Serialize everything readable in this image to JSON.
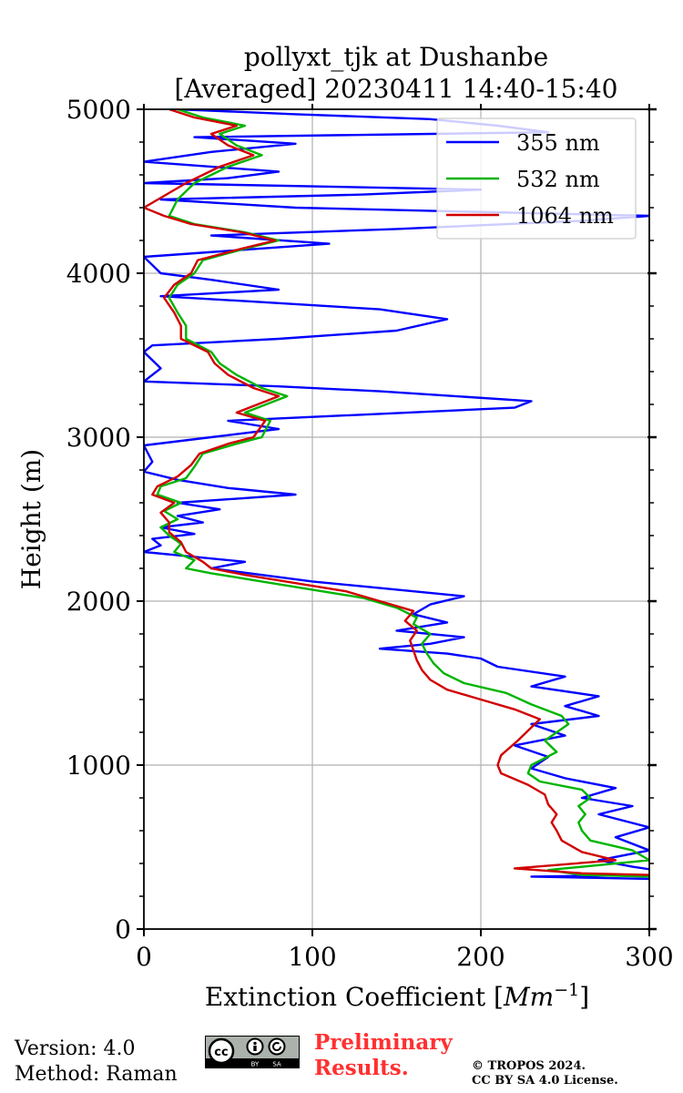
{
  "chart_data": {
    "type": "line",
    "title_line1": "pollyxt_tjk at Dushanbe",
    "title_line2": "[Averaged] 20230411 14:40-15:40",
    "xlabel_text": "Extinction Coefficient [",
    "xlabel_unit": "Mm",
    "xlabel_exp": "−1",
    "xlabel_close": "]",
    "ylabel": "Height (m)",
    "xlim": [
      0,
      300
    ],
    "ylim": [
      0,
      5000
    ],
    "xticks": [
      0,
      100,
      200,
      300
    ],
    "yticks": [
      0,
      1000,
      2000,
      3000,
      4000,
      5000
    ],
    "grid": true,
    "legend_position": "top-right",
    "series": [
      {
        "name": "355 nm",
        "color": "#0000ff",
        "points": [
          [
            330,
            300
          ],
          [
            230,
            320
          ],
          [
            300,
            330
          ],
          [
            310,
            350
          ],
          [
            290,
            380
          ],
          [
            270,
            420
          ],
          [
            300,
            480
          ],
          [
            280,
            560
          ],
          [
            300,
            620
          ],
          [
            270,
            700
          ],
          [
            290,
            750
          ],
          [
            260,
            800
          ],
          [
            280,
            860
          ],
          [
            250,
            920
          ],
          [
            230,
            980
          ],
          [
            240,
            1050
          ],
          [
            220,
            1120
          ],
          [
            250,
            1180
          ],
          [
            230,
            1250
          ],
          [
            270,
            1300
          ],
          [
            250,
            1360
          ],
          [
            270,
            1420
          ],
          [
            230,
            1480
          ],
          [
            250,
            1540
          ],
          [
            210,
            1600
          ],
          [
            200,
            1650
          ],
          [
            180,
            1680
          ],
          [
            140,
            1710
          ],
          [
            170,
            1740
          ],
          [
            190,
            1780
          ],
          [
            150,
            1820
          ],
          [
            180,
            1870
          ],
          [
            160,
            1920
          ],
          [
            170,
            1980
          ],
          [
            190,
            2030
          ],
          [
            140,
            2080
          ],
          [
            100,
            2120
          ],
          [
            70,
            2160
          ],
          [
            40,
            2200
          ],
          [
            60,
            2240
          ],
          [
            20,
            2280
          ],
          [
            0,
            2300
          ],
          [
            10,
            2340
          ],
          [
            5,
            2380
          ],
          [
            30,
            2410
          ],
          [
            10,
            2450
          ],
          [
            35,
            2480
          ],
          [
            20,
            2520
          ],
          [
            45,
            2560
          ],
          [
            20,
            2600
          ],
          [
            90,
            2650
          ],
          [
            50,
            2690
          ],
          [
            20,
            2740
          ],
          [
            0,
            2790
          ],
          [
            5,
            2850
          ],
          [
            0,
            2950
          ],
          [
            40,
            3000
          ],
          [
            80,
            3050
          ],
          [
            50,
            3100
          ],
          [
            220,
            3180
          ],
          [
            230,
            3220
          ],
          [
            140,
            3280
          ],
          [
            80,
            3310
          ],
          [
            0,
            3340
          ],
          [
            10,
            3420
          ],
          [
            0,
            3520
          ],
          [
            5,
            3560
          ],
          [
            80,
            3600
          ],
          [
            150,
            3650
          ],
          [
            180,
            3720
          ],
          [
            140,
            3780
          ],
          [
            60,
            3830
          ],
          [
            10,
            3860
          ],
          [
            80,
            3900
          ],
          [
            40,
            3960
          ],
          [
            10,
            4000
          ],
          [
            0,
            4100
          ],
          [
            110,
            4180
          ],
          [
            40,
            4230
          ],
          [
            150,
            4270
          ],
          [
            260,
            4320
          ],
          [
            300,
            4350
          ],
          [
            90,
            4400
          ],
          [
            10,
            4450
          ],
          [
            130,
            4480
          ],
          [
            200,
            4510
          ],
          [
            0,
            4550
          ],
          [
            50,
            4580
          ],
          [
            80,
            4620
          ],
          [
            0,
            4680
          ],
          [
            40,
            4740
          ],
          [
            90,
            4790
          ],
          [
            30,
            4830
          ],
          [
            240,
            4860
          ],
          [
            210,
            4900
          ],
          [
            170,
            4940
          ],
          [
            90,
            4970
          ],
          [
            20,
            5000
          ]
        ]
      },
      {
        "name": "532 nm",
        "color": "#00b400",
        "points": [
          [
            300,
            320
          ],
          [
            260,
            330
          ],
          [
            240,
            360
          ],
          [
            300,
            420
          ],
          [
            290,
            480
          ],
          [
            265,
            540
          ],
          [
            260,
            600
          ],
          [
            258,
            650
          ],
          [
            262,
            700
          ],
          [
            258,
            750
          ],
          [
            265,
            800
          ],
          [
            260,
            850
          ],
          [
            235,
            900
          ],
          [
            228,
            950
          ],
          [
            230,
            1000
          ],
          [
            245,
            1080
          ],
          [
            238,
            1150
          ],
          [
            252,
            1250
          ],
          [
            248,
            1300
          ],
          [
            230,
            1370
          ],
          [
            215,
            1440
          ],
          [
            190,
            1500
          ],
          [
            178,
            1560
          ],
          [
            172,
            1620
          ],
          [
            168,
            1680
          ],
          [
            165,
            1740
          ],
          [
            170,
            1800
          ],
          [
            160,
            1860
          ],
          [
            162,
            1900
          ],
          [
            150,
            1960
          ],
          [
            130,
            2020
          ],
          [
            100,
            2070
          ],
          [
            70,
            2120
          ],
          [
            40,
            2170
          ],
          [
            25,
            2200
          ],
          [
            30,
            2250
          ],
          [
            18,
            2300
          ],
          [
            22,
            2350
          ],
          [
            15,
            2400
          ],
          [
            10,
            2450
          ],
          [
            20,
            2500
          ],
          [
            12,
            2550
          ],
          [
            22,
            2600
          ],
          [
            8,
            2650
          ],
          [
            10,
            2700
          ],
          [
            25,
            2750
          ],
          [
            30,
            2820
          ],
          [
            35,
            2900
          ],
          [
            55,
            2960
          ],
          [
            70,
            3000
          ],
          [
            75,
            3100
          ],
          [
            60,
            3150
          ],
          [
            85,
            3250
          ],
          [
            70,
            3300
          ],
          [
            55,
            3380
          ],
          [
            45,
            3450
          ],
          [
            40,
            3520
          ],
          [
            25,
            3600
          ],
          [
            25,
            3680
          ],
          [
            20,
            3760
          ],
          [
            15,
            3850
          ],
          [
            20,
            3930
          ],
          [
            30,
            4000
          ],
          [
            35,
            4080
          ],
          [
            60,
            4150
          ],
          [
            80,
            4200
          ],
          [
            60,
            4250
          ],
          [
            30,
            4300
          ],
          [
            15,
            4350
          ],
          [
            20,
            4450
          ],
          [
            30,
            4550
          ],
          [
            50,
            4650
          ],
          [
            70,
            4720
          ],
          [
            55,
            4780
          ],
          [
            45,
            4850
          ],
          [
            60,
            4900
          ],
          [
            35,
            4950
          ],
          [
            20,
            5000
          ]
        ]
      },
      {
        "name": "1064 nm",
        "color": "#d10000",
        "points": [
          [
            300,
            330
          ],
          [
            260,
            340
          ],
          [
            220,
            370
          ],
          [
            280,
            420
          ],
          [
            260,
            470
          ],
          [
            248,
            540
          ],
          [
            245,
            600
          ],
          [
            242,
            650
          ],
          [
            245,
            700
          ],
          [
            240,
            760
          ],
          [
            238,
            820
          ],
          [
            228,
            880
          ],
          [
            212,
            950
          ],
          [
            210,
            1000
          ],
          [
            212,
            1060
          ],
          [
            222,
            1150
          ],
          [
            230,
            1230
          ],
          [
            235,
            1280
          ],
          [
            220,
            1340
          ],
          [
            200,
            1400
          ],
          [
            180,
            1460
          ],
          [
            170,
            1520
          ],
          [
            165,
            1580
          ],
          [
            162,
            1640
          ],
          [
            160,
            1700
          ],
          [
            158,
            1760
          ],
          [
            162,
            1820
          ],
          [
            155,
            1880
          ],
          [
            160,
            1940
          ],
          [
            140,
            2000
          ],
          [
            120,
            2060
          ],
          [
            90,
            2110
          ],
          [
            60,
            2160
          ],
          [
            40,
            2200
          ],
          [
            35,
            2240
          ],
          [
            25,
            2300
          ],
          [
            22,
            2360
          ],
          [
            15,
            2420
          ],
          [
            15,
            2480
          ],
          [
            10,
            2540
          ],
          [
            18,
            2600
          ],
          [
            5,
            2650
          ],
          [
            8,
            2700
          ],
          [
            20,
            2760
          ],
          [
            28,
            2830
          ],
          [
            33,
            2900
          ],
          [
            50,
            2960
          ],
          [
            65,
            3000
          ],
          [
            72,
            3100
          ],
          [
            55,
            3150
          ],
          [
            80,
            3250
          ],
          [
            65,
            3300
          ],
          [
            50,
            3380
          ],
          [
            42,
            3450
          ],
          [
            38,
            3520
          ],
          [
            22,
            3600
          ],
          [
            22,
            3680
          ],
          [
            18,
            3760
          ],
          [
            12,
            3850
          ],
          [
            18,
            3930
          ],
          [
            28,
            4000
          ],
          [
            32,
            4080
          ],
          [
            58,
            4150
          ],
          [
            78,
            4200
          ],
          [
            58,
            4250
          ],
          [
            28,
            4300
          ],
          [
            12,
            4350
          ],
          [
            0,
            4400
          ],
          [
            25,
            4550
          ],
          [
            45,
            4650
          ],
          [
            65,
            4720
          ],
          [
            50,
            4780
          ],
          [
            40,
            4850
          ],
          [
            55,
            4900
          ],
          [
            30,
            4950
          ],
          [
            15,
            5000
          ]
        ]
      }
    ]
  },
  "footer": {
    "version": "Version: 4.0",
    "method": "Method: Raman",
    "cc_label": "cc",
    "cc_by": "BY",
    "cc_sa": "SA",
    "preliminary_line1": "Preliminary",
    "preliminary_line2": "Results.",
    "copyright_line1": "© TROPOS 2024.",
    "copyright_line2": "CC BY SA 4.0 License."
  }
}
